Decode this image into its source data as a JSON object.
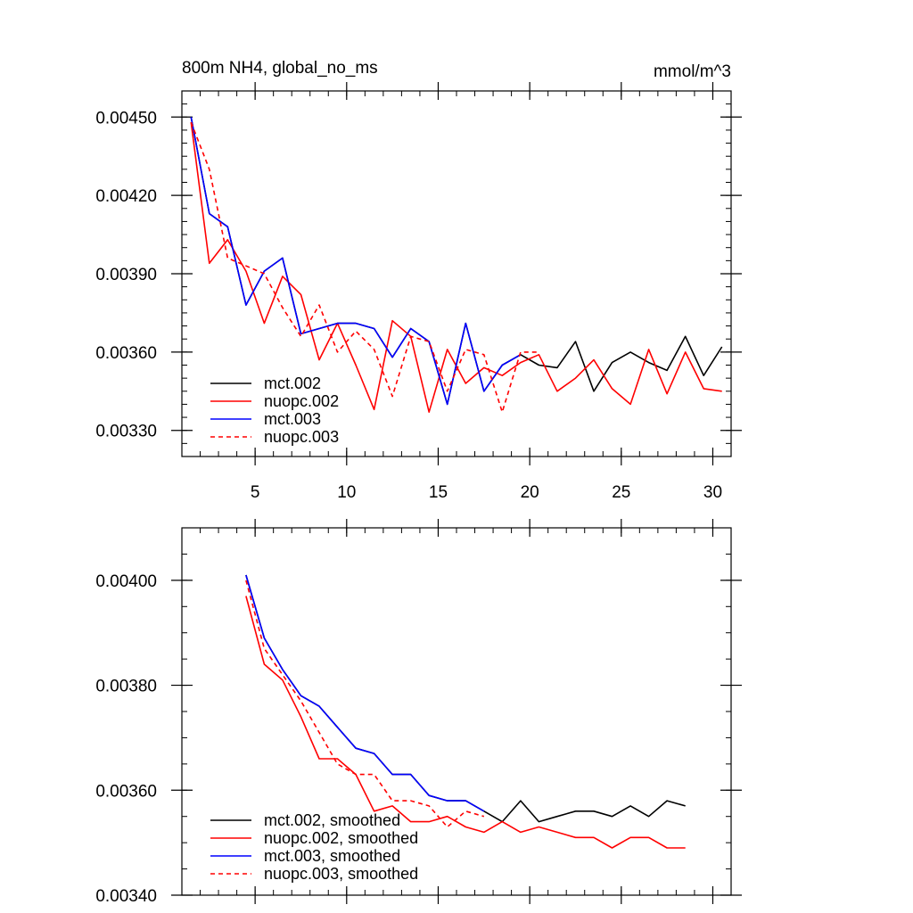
{
  "chart_data": [
    {
      "type": "line",
      "title": "800m NH4, global_no_ms",
      "units": "mmol/m^3",
      "xlabel": "",
      "ylabel": "",
      "xlim": [
        1.0,
        31.0
      ],
      "ylim": [
        0.0032,
        0.0046
      ],
      "xticks": [
        5,
        10,
        15,
        20,
        25,
        30
      ],
      "xtick_labels": [
        "5",
        "10",
        "15",
        "20",
        "25",
        "30"
      ],
      "yticks": [
        0.0033,
        0.0036,
        0.0039,
        0.0042,
        0.0045
      ],
      "ytick_labels": [
        "0.00330",
        "0.00360",
        "0.00390",
        "0.00420",
        "0.00450"
      ],
      "legend_position": "bottom-left",
      "series": [
        {
          "name": "mct.002",
          "color": "#000000",
          "dash": "solid",
          "x": [
            1.5,
            2.5,
            3.5,
            4.5,
            5.5,
            6.5,
            7.5,
            8.5,
            9.5,
            10.5,
            11.5,
            12.5,
            13.5,
            14.5,
            15.5,
            16.5,
            17.5,
            18.5,
            19.5,
            20.5,
            21.5,
            22.5,
            23.5,
            24.5,
            25.5,
            26.5,
            27.5,
            28.5,
            29.5,
            30.5
          ],
          "y": [
            0.0045,
            0.00413,
            0.00408,
            0.00378,
            0.00391,
            0.00396,
            0.00367,
            0.00369,
            0.00371,
            0.00371,
            0.00369,
            0.00358,
            0.00369,
            0.00364,
            0.0034,
            0.00371,
            0.00345,
            0.00355,
            0.00359,
            0.00355,
            0.00354,
            0.00364,
            0.00345,
            0.00356,
            0.0036,
            0.00356,
            0.00353,
            0.00366,
            0.00351,
            0.00362
          ]
        },
        {
          "name": "nuopc.002",
          "color": "#ff0000",
          "dash": "solid",
          "x": [
            1.5,
            2.5,
            3.5,
            4.5,
            5.5,
            6.5,
            7.5,
            8.5,
            9.5,
            10.5,
            11.5,
            12.5,
            13.5,
            14.5,
            15.5,
            16.5,
            17.5,
            18.5,
            19.5,
            20.5,
            21.5,
            22.5,
            23.5,
            24.5,
            25.5,
            26.5,
            27.5,
            28.5,
            29.5,
            30.5
          ],
          "y": [
            0.00448,
            0.00394,
            0.00403,
            0.00391,
            0.00371,
            0.00389,
            0.00382,
            0.00357,
            0.00371,
            0.00355,
            0.00338,
            0.00372,
            0.00366,
            0.00337,
            0.00361,
            0.00348,
            0.00354,
            0.00351,
            0.00356,
            0.00359,
            0.00345,
            0.0035,
            0.00357,
            0.00346,
            0.0034,
            0.00361,
            0.00344,
            0.0036,
            0.00346,
            0.00345
          ]
        },
        {
          "name": "mct.003",
          "color": "#0000ff",
          "dash": "solid",
          "x": [
            1.5,
            2.5,
            3.5,
            4.5,
            5.5,
            6.5,
            7.5,
            8.5,
            9.5,
            10.5,
            11.5,
            12.5,
            13.5,
            14.5,
            15.5,
            16.5,
            17.5,
            18.5,
            19.5
          ],
          "y": [
            0.0045,
            0.00413,
            0.00408,
            0.00378,
            0.00391,
            0.00396,
            0.00367,
            0.00369,
            0.00371,
            0.00371,
            0.00369,
            0.00358,
            0.00369,
            0.00364,
            0.0034,
            0.00371,
            0.00345,
            0.00355,
            0.00359
          ]
        },
        {
          "name": "nuopc.003",
          "color": "#ff0000",
          "dash": "dashed",
          "x": [
            1.5,
            2.5,
            3.5,
            4.5,
            5.5,
            6.5,
            7.5,
            8.5,
            9.5,
            10.5,
            11.5,
            12.5,
            13.5,
            14.5,
            15.5,
            16.5,
            17.5,
            18.5,
            19.5,
            20.5
          ],
          "y": [
            0.00448,
            0.0043,
            0.00396,
            0.00393,
            0.0039,
            0.00377,
            0.00366,
            0.00378,
            0.0036,
            0.00368,
            0.00361,
            0.00343,
            0.00366,
            0.00364,
            0.00345,
            0.00361,
            0.00359,
            0.00337,
            0.0036,
            0.0036
          ]
        }
      ]
    },
    {
      "type": "line",
      "title": "",
      "xlabel": "",
      "ylabel": "",
      "xlim": [
        1.0,
        31.0
      ],
      "ylim": [
        0.0034,
        0.0041
      ],
      "xticks": [
        5,
        10,
        15,
        20,
        25,
        30
      ],
      "xtick_labels": [],
      "yticks": [
        0.0034,
        0.0036,
        0.0038,
        0.004
      ],
      "ytick_labels": [
        "0.00340",
        "0.00360",
        "0.00380",
        "0.00400"
      ],
      "legend_position": "bottom-left",
      "series": [
        {
          "name": "mct.002, smoothed",
          "color": "#000000",
          "dash": "solid",
          "x": [
            4.5,
            5.5,
            6.5,
            7.5,
            8.5,
            9.5,
            10.5,
            11.5,
            12.5,
            13.5,
            14.5,
            15.5,
            16.5,
            17.5,
            18.5,
            19.5,
            20.5,
            21.5,
            22.5,
            23.5,
            24.5,
            25.5,
            26.5,
            27.5,
            28.5
          ],
          "y": [
            0.00401,
            0.00389,
            0.00383,
            0.00378,
            0.00376,
            0.00372,
            0.00368,
            0.00367,
            0.00363,
            0.00363,
            0.00359,
            0.00358,
            0.00358,
            0.00356,
            0.00354,
            0.00358,
            0.00354,
            0.00355,
            0.00356,
            0.00356,
            0.00355,
            0.00357,
            0.00355,
            0.00358,
            0.00357
          ]
        },
        {
          "name": "nuopc.002, smoothed",
          "color": "#ff0000",
          "dash": "solid",
          "x": [
            4.5,
            5.5,
            6.5,
            7.5,
            8.5,
            9.5,
            10.5,
            11.5,
            12.5,
            13.5,
            14.5,
            15.5,
            16.5,
            17.5,
            18.5,
            19.5,
            20.5,
            21.5,
            22.5,
            23.5,
            24.5,
            25.5,
            26.5,
            27.5,
            28.5
          ],
          "y": [
            0.00397,
            0.00384,
            0.00381,
            0.00374,
            0.00366,
            0.00366,
            0.00363,
            0.00356,
            0.00357,
            0.00354,
            0.00354,
            0.00355,
            0.00353,
            0.00352,
            0.00354,
            0.00352,
            0.00353,
            0.00352,
            0.00351,
            0.00351,
            0.00349,
            0.00351,
            0.00351,
            0.00349,
            0.00349
          ]
        },
        {
          "name": "mct.003, smoothed",
          "color": "#0000ff",
          "dash": "solid",
          "x": [
            4.5,
            5.5,
            6.5,
            7.5,
            8.5,
            9.5,
            10.5,
            11.5,
            12.5,
            13.5,
            14.5,
            15.5,
            16.5,
            17.5
          ],
          "y": [
            0.00401,
            0.00389,
            0.00383,
            0.00378,
            0.00376,
            0.00372,
            0.00368,
            0.00367,
            0.00363,
            0.00363,
            0.00359,
            0.00358,
            0.00358,
            0.00356
          ]
        },
        {
          "name": "nuopc.003, smoothed",
          "color": "#ff0000",
          "dash": "dashed",
          "x": [
            4.5,
            5.5,
            6.5,
            7.5,
            8.5,
            9.5,
            10.5,
            11.5,
            12.5,
            13.5,
            14.5,
            15.5,
            16.5,
            17.5
          ],
          "y": [
            0.004,
            0.00387,
            0.00382,
            0.00377,
            0.00371,
            0.00365,
            0.00363,
            0.00363,
            0.00358,
            0.00358,
            0.00357,
            0.00353,
            0.00356,
            0.00355
          ]
        }
      ]
    }
  ]
}
